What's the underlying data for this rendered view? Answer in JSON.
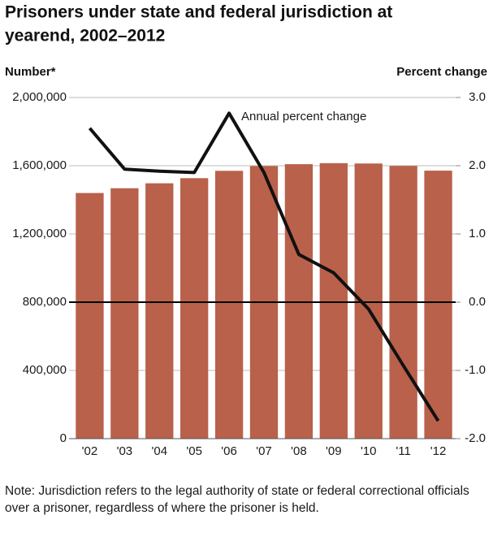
{
  "chart_data": {
    "type": "bar",
    "title": [
      "Prisoners under state and federal jurisdiction at",
      "yearend, 2002–2012"
    ],
    "y_label": "Number*",
    "y2_label": "Percent change",
    "categories": [
      "'02",
      "'03",
      "'04",
      "'05",
      "'06",
      "'07",
      "'08",
      "'09",
      "'10",
      "'11",
      "'12"
    ],
    "values": [
      1440000,
      1468000,
      1497000,
      1527000,
      1570000,
      1598000,
      1609000,
      1615000,
      1613000,
      1599000,
      1571000
    ],
    "color": "#b9614a",
    "line": {
      "name": "Annual percent change",
      "color": "#111111",
      "axis": "y2",
      "values": [
        2.55,
        1.95,
        1.92,
        1.9,
        2.77,
        1.9,
        0.7,
        0.43,
        -0.1,
        -0.93,
        -1.74
      ]
    },
    "ylim": [
      0,
      2000000
    ],
    "yticks": [
      0,
      {
        "value": 400000,
        "label": "400,000"
      },
      {
        "value": 800000,
        "label": "800,000"
      },
      {
        "value": 1200000,
        "label": "1,200,000"
      },
      {
        "value": 1600000,
        "label": "1,600,000"
      },
      {
        "value": 2000000,
        "label": "2,000,000"
      }
    ],
    "y2lim": [
      -2,
      3
    ],
    "y2ticks": [
      {
        "value": -2,
        "label": "-2.0"
      },
      {
        "value": -1,
        "label": "-1.0"
      },
      {
        "value": 0,
        "label": "0.0"
      },
      {
        "value": 1,
        "label": "1.0"
      },
      {
        "value": 2,
        "label": "2.0"
      },
      {
        "value": 3,
        "label": "3.0"
      }
    ],
    "grid": true
  },
  "note": "Note: Jurisdiction refers to the legal authority of state or federal correctional officials over a prisoner, regardless of where the prisoner is held."
}
